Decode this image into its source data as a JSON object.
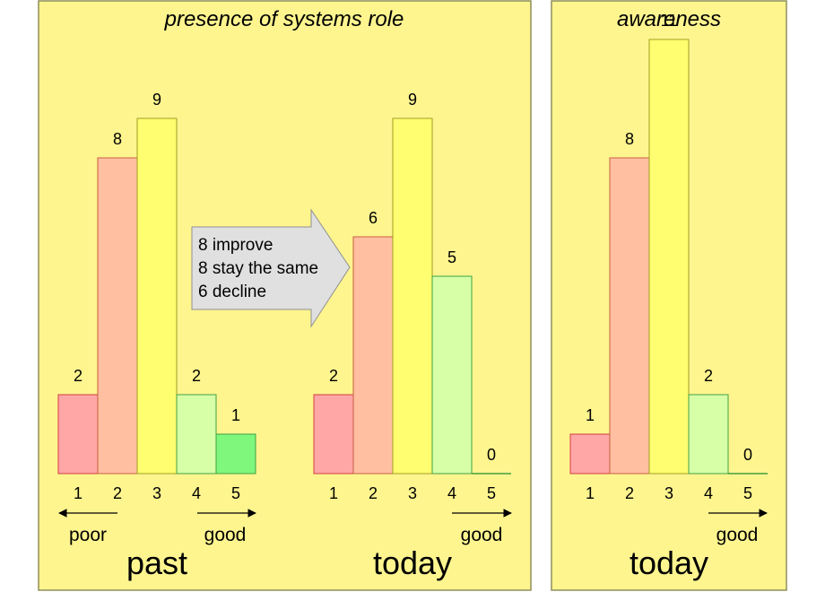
{
  "colors": {
    "panel_bg": "#fef58f",
    "panel_border": "#8f8f5a",
    "bar_1": "#ffa6a6",
    "bar_2": "#ffbfa0",
    "bar_3": "#fffd70",
    "bar_4": "#d6ffa8",
    "bar_5_past": "#7ef77c",
    "callout_fill": "#e0e0e0"
  },
  "chart_data": [
    {
      "type": "bar",
      "title": "presence of systems role",
      "caption": "past",
      "categories": [
        "1",
        "2",
        "3",
        "4",
        "5"
      ],
      "values": [
        2,
        8,
        9,
        2,
        1
      ],
      "scale_labels": {
        "left": "poor",
        "right": "good"
      }
    },
    {
      "type": "bar",
      "caption": "today",
      "categories": [
        "1",
        "2",
        "3",
        "4",
        "5"
      ],
      "values": [
        2,
        6,
        9,
        5,
        0
      ],
      "scale_labels": {
        "right": "good"
      }
    },
    {
      "type": "bar",
      "title": "awareness",
      "caption": "today",
      "categories": [
        "1",
        "2",
        "3",
        "4",
        "5"
      ],
      "values": [
        1,
        8,
        11,
        2,
        0
      ],
      "scale_labels": {
        "right": "good"
      }
    }
  ],
  "callout": {
    "lines": [
      "8 improve",
      "8 stay the same",
      "6 decline"
    ]
  }
}
